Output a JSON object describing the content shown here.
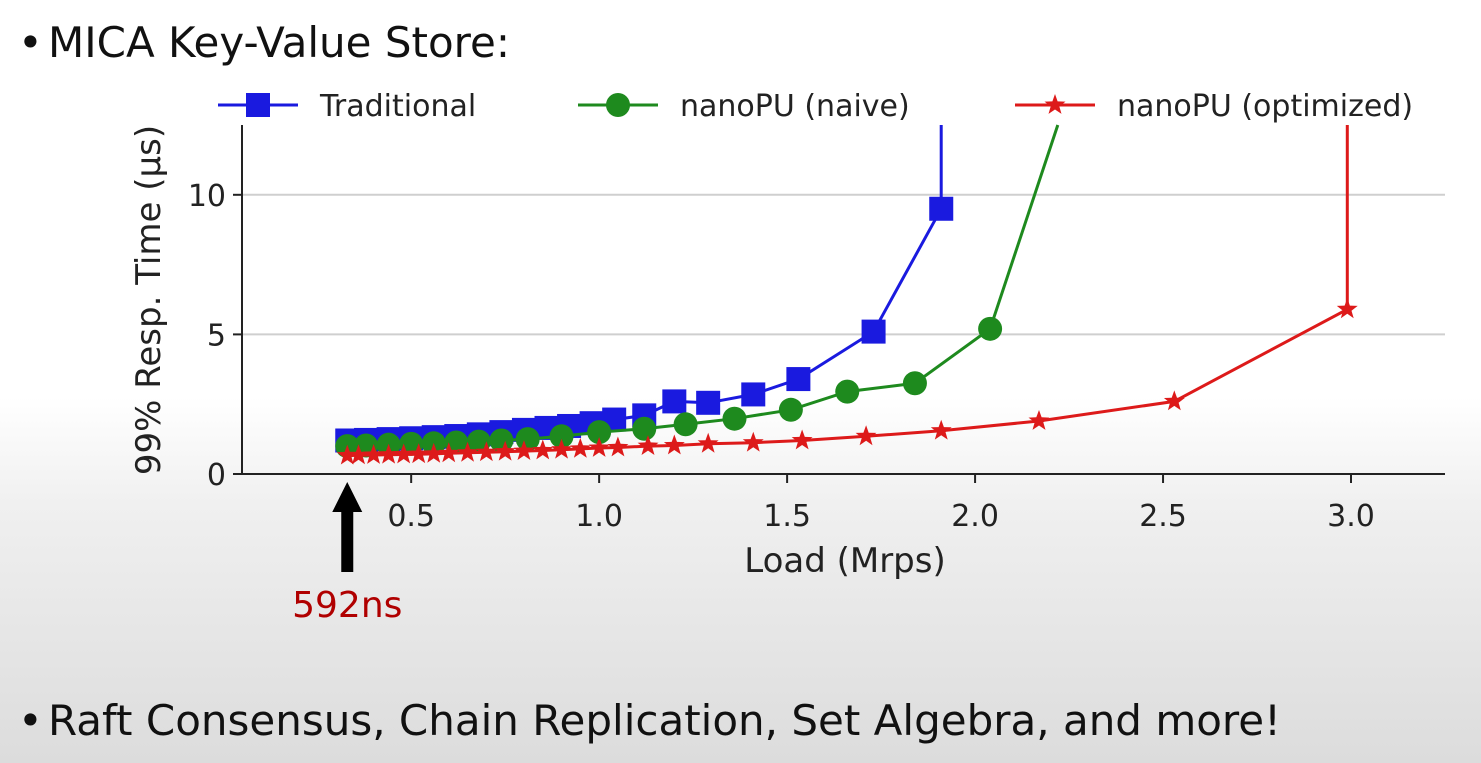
{
  "bullets": {
    "first": "MICA Key-Value Store:",
    "last": "Raft Consensus, Chain Replication, Set Algebra, and more!"
  },
  "annotation": {
    "label": "592ns",
    "x": 0.33,
    "color": "#b00000"
  },
  "chart_data": {
    "type": "line",
    "title": "",
    "xlabel": "Load (Mrps)",
    "ylabel": "99% Resp. Time (μs)",
    "xlim": [
      0.05,
      3.25
    ],
    "ylim": [
      0,
      12.5
    ],
    "xticks": [
      0.5,
      1.0,
      1.5,
      2.0,
      2.5,
      3.0
    ],
    "xtick_labels": [
      "0.5",
      "1.0",
      "1.5",
      "2.0",
      "2.5",
      "3.0"
    ],
    "yticks": [
      0,
      5,
      10
    ],
    "ytick_labels": [
      "0",
      "5",
      "10"
    ],
    "grid": "horizontal",
    "legend": "top",
    "series": [
      {
        "name": "Traditional",
        "color": "#1a1adf",
        "marker": "square",
        "x": [
          0.33,
          0.38,
          0.44,
          0.5,
          0.56,
          0.62,
          0.68,
          0.74,
          0.8,
          0.86,
          0.92,
          0.98,
          1.04,
          1.12,
          1.2,
          1.29,
          1.41,
          1.53,
          1.73,
          1.91,
          1.91
        ],
        "y": [
          1.2,
          1.22,
          1.25,
          1.28,
          1.32,
          1.36,
          1.42,
          1.5,
          1.58,
          1.65,
          1.72,
          1.82,
          1.95,
          2.1,
          2.6,
          2.55,
          2.85,
          3.4,
          5.1,
          9.5,
          12.5
        ]
      },
      {
        "name": "nanoPU (naive)",
        "color": "#1e8a1e",
        "marker": "circle",
        "x": [
          0.33,
          0.38,
          0.44,
          0.5,
          0.56,
          0.62,
          0.68,
          0.74,
          0.81,
          0.9,
          1.0,
          1.12,
          1.23,
          1.36,
          1.51,
          1.66,
          1.84,
          2.04,
          2.22
        ],
        "y": [
          1.0,
          1.02,
          1.05,
          1.08,
          1.1,
          1.13,
          1.16,
          1.2,
          1.25,
          1.35,
          1.5,
          1.62,
          1.78,
          1.98,
          2.3,
          2.95,
          3.25,
          5.2,
          12.5
        ]
      },
      {
        "name": "nanoPU (optimized)",
        "color": "#dd1a1a",
        "marker": "star",
        "x": [
          0.33,
          0.36,
          0.4,
          0.44,
          0.48,
          0.52,
          0.56,
          0.6,
          0.65,
          0.7,
          0.75,
          0.8,
          0.85,
          0.9,
          0.95,
          1.0,
          1.05,
          1.13,
          1.2,
          1.29,
          1.41,
          1.54,
          1.71,
          1.91,
          2.17,
          2.53,
          2.99,
          2.99
        ],
        "y": [
          0.66,
          0.67,
          0.68,
          0.69,
          0.7,
          0.71,
          0.72,
          0.74,
          0.76,
          0.78,
          0.8,
          0.82,
          0.84,
          0.87,
          0.9,
          0.93,
          0.95,
          1.0,
          1.02,
          1.08,
          1.12,
          1.2,
          1.35,
          1.55,
          1.9,
          2.6,
          5.9,
          12.5
        ]
      }
    ]
  }
}
